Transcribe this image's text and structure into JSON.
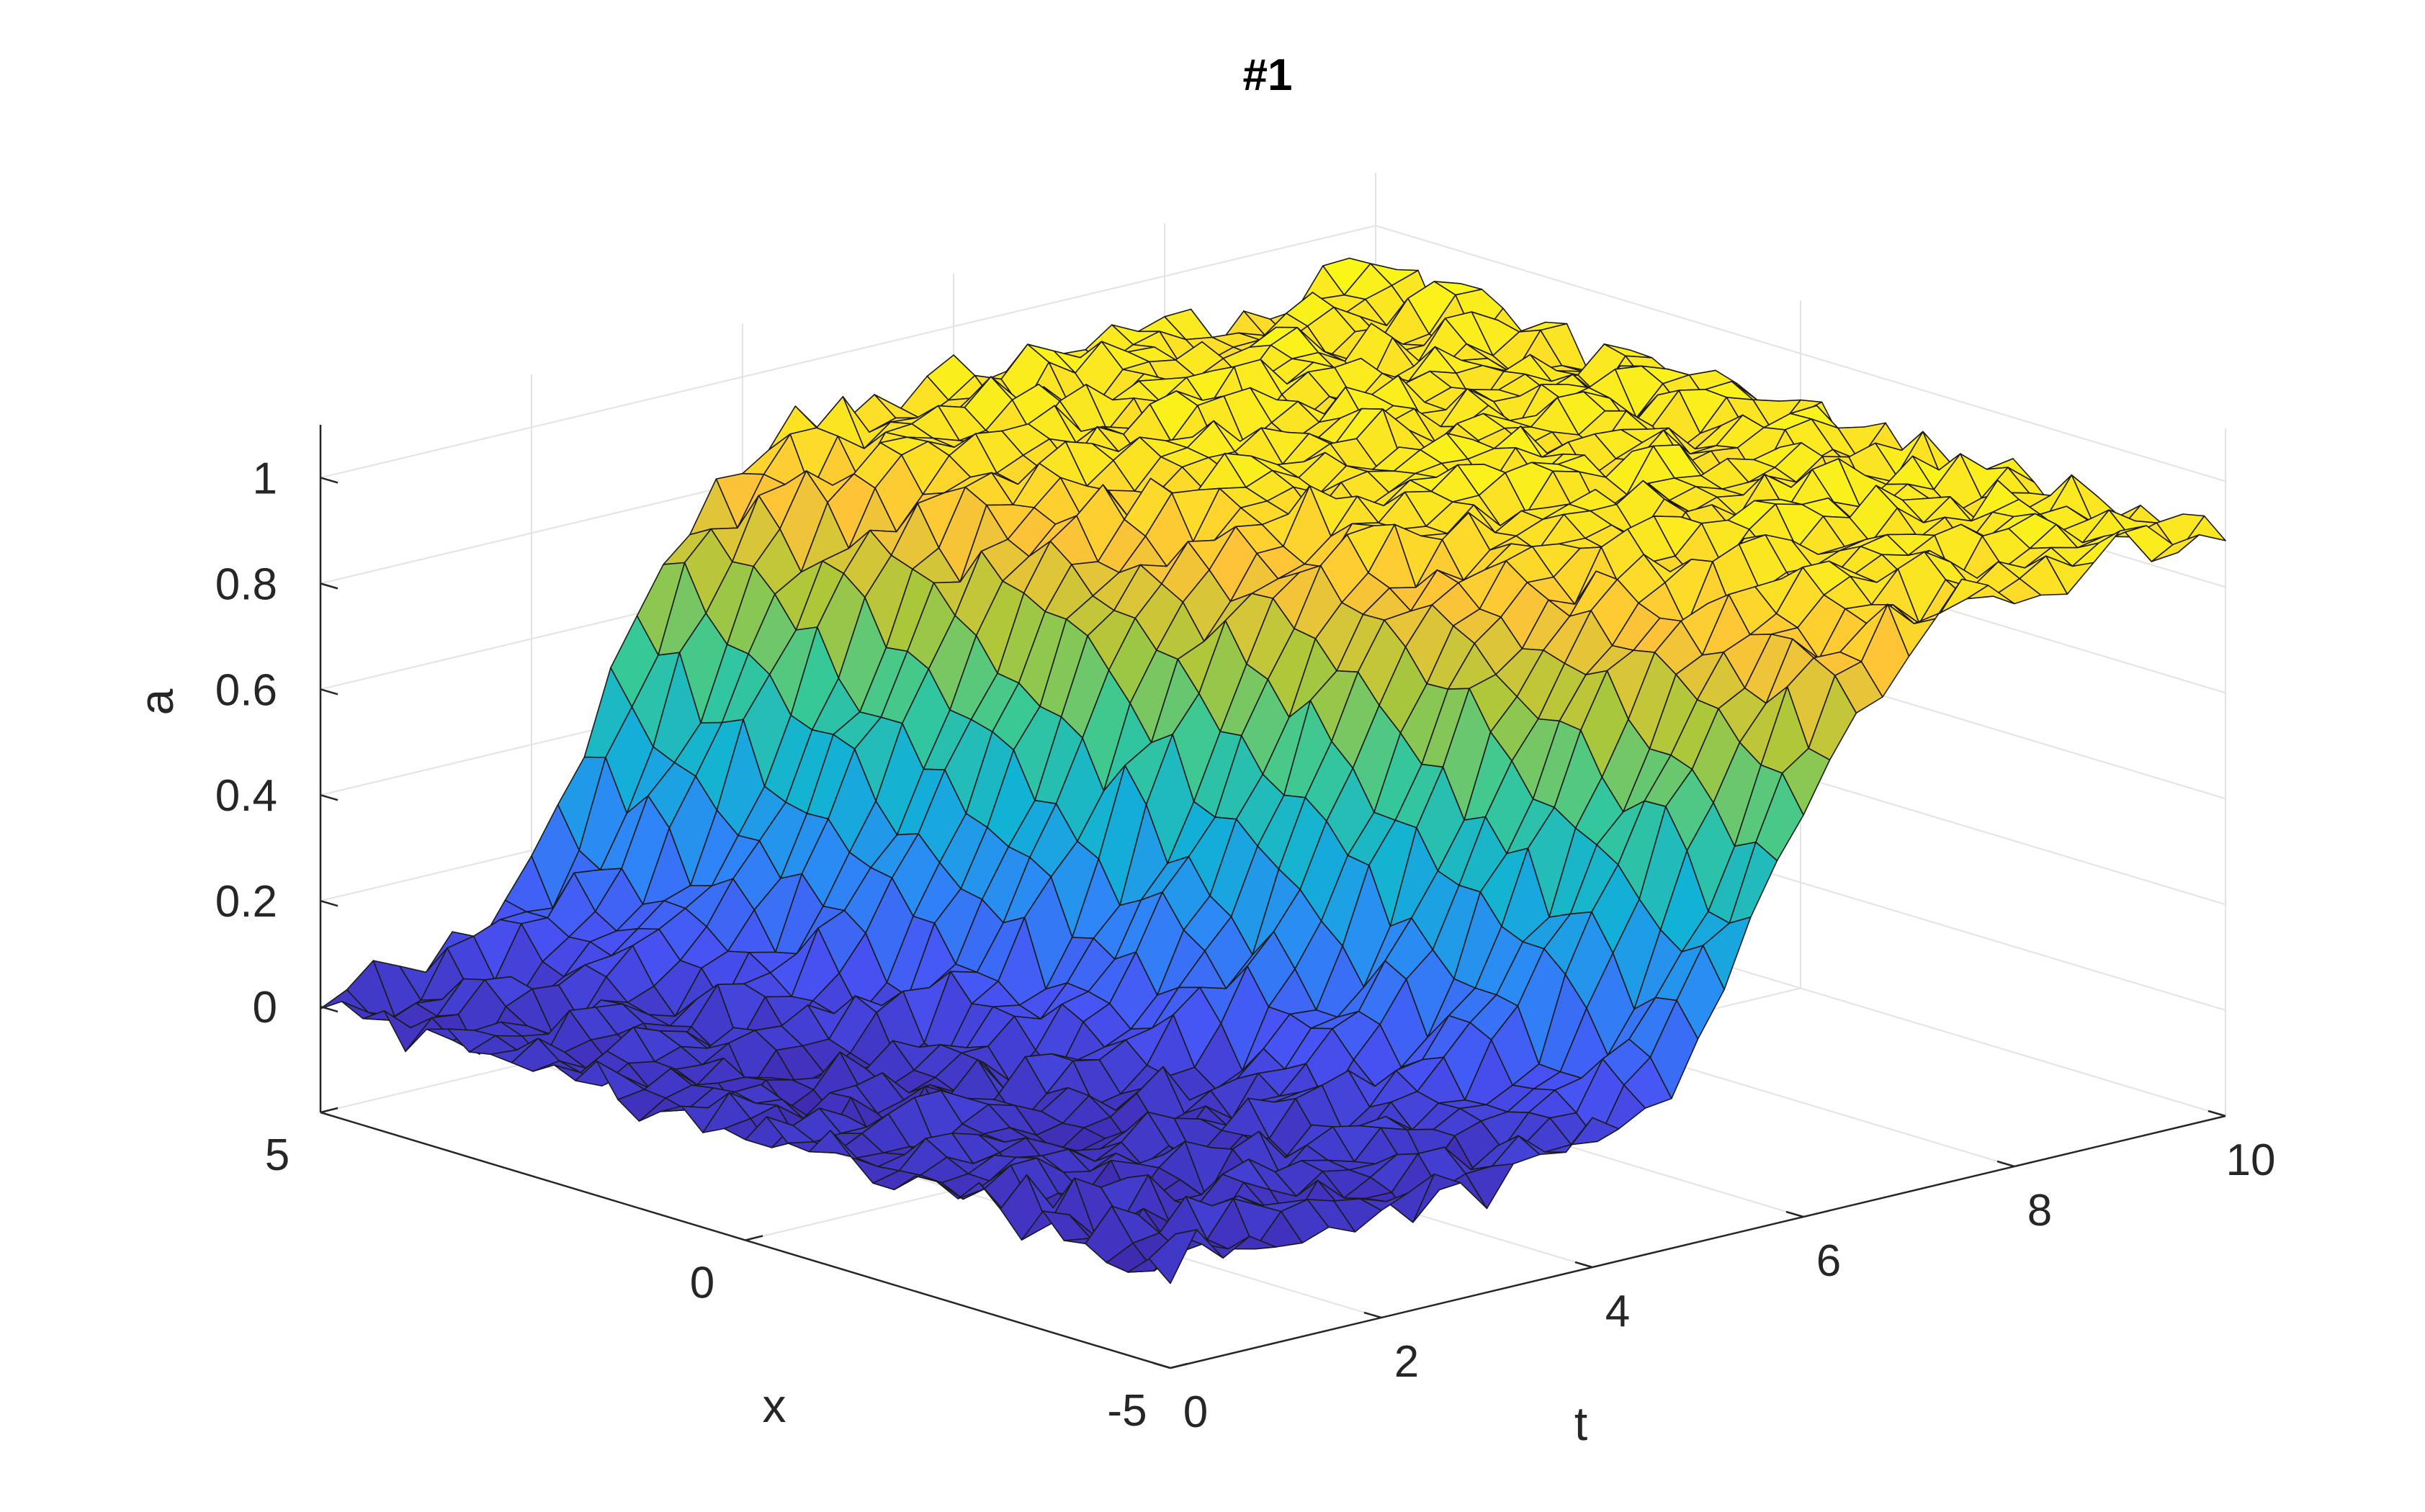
{
  "chart_data": {
    "type": "surface",
    "title": "#1",
    "xlabel": "t",
    "ylabel": "x",
    "zlabel": "a",
    "t_ticks": [
      0,
      2,
      4,
      6,
      8,
      10
    ],
    "x_ticks": [
      -5,
      0,
      5
    ],
    "z_ticks": [
      0,
      0.2,
      0.4,
      0.6,
      0.8,
      1
    ],
    "t_range": [
      0,
      10
    ],
    "x_range": [
      -5,
      5
    ],
    "z_range": [
      -0.2,
      1.1
    ],
    "grid": true,
    "colormap": "parula",
    "surface": {
      "form": "a(t,x) = 0.9 / (1 + exp(-2.0 * (t - (4.2 - 0.3 * x)))) + noise(±0.04)",
      "t_samples": 41,
      "x_samples": 41,
      "plateau_value": 0.9,
      "base_value": 0.0
    }
  }
}
